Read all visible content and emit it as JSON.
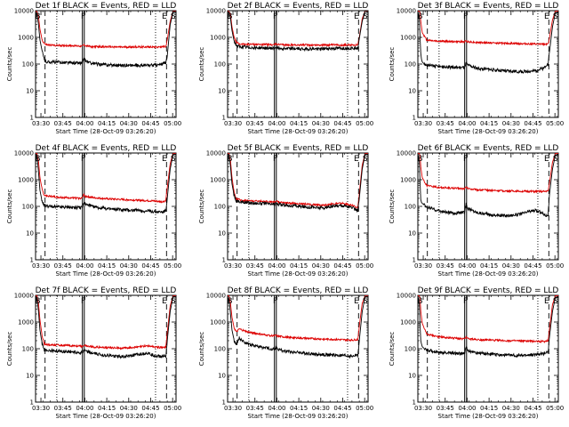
{
  "figure": {
    "colors": {
      "events": "#000000",
      "lld": "#dd0000",
      "axis": "#000000",
      "background": "#ffffff"
    },
    "shared": {
      "xlabel": "Start Time (28-Oct-09 03:26:20)",
      "ylabel": "Counts/sec",
      "xtick_labels": [
        "03:30",
        "03:45",
        "04:00",
        "04:15",
        "04:30",
        "04:45",
        "05:00"
      ],
      "xtick_minutes": [
        3.67,
        18.67,
        33.67,
        48.67,
        63.67,
        78.67,
        93.67
      ],
      "ytick_labels": [
        "1",
        "10",
        "100",
        "1000",
        "10000"
      ],
      "ytick_values": [
        1,
        10,
        100,
        1000,
        10000
      ],
      "xlim_minutes": [
        0,
        96
      ],
      "ylim": [
        1,
        10000
      ],
      "yscale": "log",
      "dashed_vlines": [
        6.5,
        89.5
      ],
      "dotted_vlines": [
        14.5,
        82
      ],
      "solid_vlines": [
        32,
        33.3
      ],
      "markers": {
        "B": 1.5,
        "F": 32.6,
        "E": 88,
        "S": 94
      }
    }
  },
  "chart_data": [
    {
      "type": "line",
      "title": "Det 1f BLACK = Events, RED = LLD",
      "series": [
        {
          "color": "black",
          "x": [
            0,
            1,
            2,
            3,
            4.5,
            5.5,
            6.5,
            8,
            10,
            14,
            18,
            24,
            30,
            32,
            33,
            34,
            37,
            42,
            50,
            60,
            70,
            80,
            86,
            88,
            89,
            90,
            92,
            94,
            96
          ],
          "y": [
            8500,
            8000,
            3000,
            800,
            300,
            180,
            130,
            120,
            120,
            118,
            115,
            110,
            108,
            108,
            150,
            135,
            110,
            100,
            92,
            90,
            88,
            90,
            95,
            110,
            105,
            200,
            3000,
            9000,
            9000
          ]
        },
        {
          "color": "red",
          "x": [
            0,
            1,
            2,
            3,
            4.5,
            6,
            8,
            14,
            24,
            32,
            33,
            34,
            38,
            50,
            60,
            70,
            80,
            87,
            88,
            89,
            90,
            92,
            94,
            96
          ],
          "y": [
            9500,
            9200,
            6000,
            2000,
            800,
            580,
            520,
            500,
            490,
            470,
            520,
            490,
            450,
            440,
            430,
            440,
            440,
            440,
            460,
            440,
            800,
            4000,
            9500,
            9500
          ]
        }
      ]
    },
    {
      "type": "line",
      "title": "Det 2f BLACK = Events, RED = LLD",
      "series": [
        {
          "color": "black",
          "x": [
            0,
            1,
            2,
            3,
            4.5,
            6,
            8,
            14,
            24,
            32,
            33,
            34,
            40,
            50,
            60,
            70,
            80,
            87,
            88,
            89,
            90,
            92,
            94,
            96
          ],
          "y": [
            9000,
            8500,
            5000,
            1800,
            700,
            500,
            440,
            420,
            400,
            390,
            430,
            400,
            380,
            370,
            370,
            380,
            390,
            400,
            430,
            400,
            900,
            4000,
            9500,
            9500
          ]
        },
        {
          "color": "red",
          "x": [
            0,
            1,
            2,
            3,
            4.5,
            6,
            8,
            14,
            24,
            32,
            33,
            34,
            40,
            50,
            60,
            70,
            80,
            87,
            88,
            89,
            90,
            92,
            94,
            96
          ],
          "y": [
            9500,
            9300,
            7000,
            2500,
            1000,
            650,
            560,
            550,
            540,
            530,
            570,
            540,
            520,
            520,
            515,
            520,
            515,
            520,
            540,
            520,
            1000,
            5000,
            9800,
            9800
          ]
        }
      ]
    },
    {
      "type": "line",
      "title": "Det 3f BLACK = Events, RED = LLD",
      "series": [
        {
          "color": "black",
          "x": [
            0,
            1,
            1.5,
            2,
            2.5,
            3,
            4.5,
            6,
            10,
            16,
            24,
            32,
            33,
            34,
            40,
            50,
            60,
            70,
            80,
            86,
            88,
            89,
            90,
            92,
            94,
            96
          ],
          "y": [
            8000,
            6000,
            1000,
            250,
            150,
            120,
            100,
            90,
            85,
            80,
            75,
            75,
            110,
            90,
            70,
            62,
            55,
            52,
            55,
            70,
            100,
            95,
            300,
            2500,
            8500,
            8500
          ]
        },
        {
          "color": "red",
          "x": [
            0,
            1,
            1.5,
            2,
            3,
            6,
            14,
            24,
            32,
            33,
            34,
            40,
            50,
            60,
            70,
            80,
            87,
            88,
            89,
            90,
            92,
            94,
            96
          ],
          "y": [
            9700,
            9600,
            8500,
            4000,
            1500,
            800,
            720,
            700,
            680,
            740,
            690,
            650,
            620,
            600,
            580,
            560,
            550,
            570,
            560,
            1000,
            4500,
            9700,
            9700
          ]
        }
      ]
    },
    {
      "type": "line",
      "title": "Det 4f BLACK = Events, RED = LLD",
      "series": [
        {
          "color": "black",
          "x": [
            0,
            1,
            2,
            3,
            4.5,
            6,
            10,
            16,
            24,
            30,
            32,
            33,
            34,
            40,
            50,
            60,
            70,
            80,
            86,
            88,
            89,
            90,
            92,
            94,
            96
          ],
          "y": [
            9000,
            8000,
            2000,
            400,
            150,
            110,
            100,
            95,
            92,
            88,
            90,
            150,
            120,
            95,
            80,
            75,
            70,
            65,
            62,
            65,
            70,
            200,
            2500,
            9000,
            9000
          ]
        },
        {
          "color": "red",
          "x": [
            0,
            1,
            2,
            3,
            4.5,
            6,
            10,
            16,
            24,
            30,
            32,
            33,
            34,
            40,
            50,
            60,
            70,
            80,
            86,
            88,
            89,
            90,
            92,
            94,
            96
          ],
          "y": [
            9800,
            9500,
            5000,
            1200,
            420,
            260,
            240,
            220,
            210,
            200,
            210,
            280,
            240,
            210,
            190,
            180,
            170,
            160,
            150,
            155,
            170,
            500,
            4000,
            9700,
            9700
          ]
        }
      ]
    },
    {
      "type": "line",
      "title": "Det 5f BLACK = Events, RED = LLD",
      "series": [
        {
          "color": "black",
          "x": [
            0,
            1,
            2,
            3,
            4.5,
            6,
            10,
            16,
            24,
            30,
            32,
            33,
            34,
            40,
            50,
            60,
            66,
            72,
            78,
            84,
            88,
            89,
            90,
            92,
            94,
            96
          ],
          "y": [
            9000,
            8500,
            3000,
            700,
            250,
            160,
            145,
            135,
            128,
            120,
            118,
            130,
            120,
            110,
            100,
            90,
            88,
            100,
            110,
            95,
            75,
            70,
            200,
            2500,
            9000,
            9000
          ]
        },
        {
          "color": "red",
          "x": [
            0,
            1,
            2,
            3,
            4.5,
            6,
            10,
            16,
            24,
            30,
            32,
            33,
            34,
            40,
            50,
            60,
            66,
            72,
            78,
            84,
            88,
            89,
            90,
            92,
            94,
            96
          ],
          "y": [
            9800,
            9500,
            5000,
            1200,
            320,
            190,
            170,
            160,
            155,
            150,
            148,
            158,
            150,
            135,
            125,
            115,
            112,
            125,
            130,
            115,
            95,
            88,
            300,
            3500,
            9700,
            9700
          ]
        }
      ]
    },
    {
      "type": "line",
      "title": "Det 6f BLACK = Events, RED = LLD",
      "series": [
        {
          "color": "black",
          "x": [
            0,
            1,
            1.5,
            2,
            2.5,
            3,
            4.5,
            6,
            10,
            16,
            24,
            32,
            33,
            34,
            40,
            50,
            60,
            70,
            76,
            80,
            84,
            88,
            89,
            90,
            92,
            94,
            96
          ],
          "y": [
            8000,
            5000,
            800,
            180,
            140,
            130,
            110,
            95,
            80,
            65,
            55,
            60,
            120,
            85,
            60,
            48,
            45,
            50,
            65,
            70,
            60,
            45,
            50,
            300,
            2500,
            8500,
            8500
          ]
        },
        {
          "color": "red",
          "x": [
            0,
            1,
            1.5,
            2,
            3,
            6,
            14,
            24,
            32,
            33,
            34,
            40,
            50,
            60,
            70,
            80,
            87,
            88,
            89,
            90,
            92,
            94,
            96
          ],
          "y": [
            9700,
            9500,
            8000,
            3000,
            1200,
            600,
            520,
            480,
            460,
            520,
            470,
            420,
            400,
            380,
            370,
            360,
            360,
            380,
            360,
            800,
            4500,
            9700,
            9700
          ]
        }
      ]
    },
    {
      "type": "line",
      "title": "Det 7f BLACK = Events, RED = LLD",
      "series": [
        {
          "color": "black",
          "x": [
            0,
            1,
            2,
            3,
            4.5,
            6,
            10,
            16,
            24,
            30,
            32,
            33,
            34,
            40,
            50,
            60,
            70,
            76,
            80,
            86,
            88,
            89,
            90,
            92,
            94,
            96
          ],
          "y": [
            9000,
            8000,
            2500,
            500,
            150,
            90,
            85,
            80,
            78,
            72,
            70,
            90,
            80,
            65,
            55,
            50,
            60,
            70,
            58,
            50,
            55,
            52,
            200,
            2500,
            9000,
            9000
          ]
        },
        {
          "color": "red",
          "x": [
            0,
            1,
            2,
            3,
            4.5,
            6,
            10,
            16,
            24,
            30,
            32,
            33,
            34,
            40,
            50,
            60,
            70,
            76,
            80,
            86,
            88,
            89,
            90,
            92,
            94,
            96
          ],
          "y": [
            9800,
            9500,
            5000,
            1200,
            300,
            150,
            140,
            135,
            130,
            125,
            120,
            140,
            130,
            115,
            110,
            105,
            115,
            130,
            120,
            110,
            115,
            110,
            400,
            4000,
            9700,
            9700
          ]
        }
      ]
    },
    {
      "type": "line",
      "title": "Det 8f BLACK = Events, RED = LLD",
      "series": [
        {
          "color": "black",
          "x": [
            0,
            1,
            2,
            3,
            4.5,
            6,
            8,
            10,
            14,
            24,
            32,
            33,
            34,
            40,
            50,
            60,
            70,
            80,
            86,
            88,
            89,
            90,
            92,
            94,
            96
          ],
          "y": [
            8500,
            7000,
            2000,
            500,
            200,
            150,
            250,
            200,
            150,
            110,
            95,
            110,
            95,
            80,
            70,
            62,
            58,
            55,
            52,
            60,
            55,
            200,
            2500,
            9000,
            9000
          ]
        },
        {
          "color": "red",
          "x": [
            0,
            1,
            2,
            3,
            4.5,
            6,
            8,
            10,
            14,
            24,
            32,
            33,
            34,
            40,
            50,
            60,
            70,
            80,
            86,
            88,
            89,
            90,
            92,
            94,
            96
          ],
          "y": [
            9800,
            9500,
            5000,
            1500,
            600,
            420,
            550,
            500,
            420,
            340,
            300,
            320,
            295,
            270,
            250,
            235,
            225,
            215,
            210,
            220,
            215,
            700,
            5000,
            9800,
            9800
          ]
        }
      ]
    },
    {
      "type": "line",
      "title": "Det 9f BLACK = Events, RED = LLD",
      "series": [
        {
          "color": "black",
          "x": [
            0,
            1,
            1.5,
            2,
            2.5,
            3,
            4.5,
            6,
            10,
            16,
            24,
            32,
            33,
            34,
            40,
            50,
            60,
            70,
            80,
            86,
            88,
            89,
            90,
            92,
            94,
            96
          ],
          "y": [
            8000,
            5000,
            800,
            200,
            150,
            120,
            100,
            90,
            80,
            72,
            68,
            65,
            120,
            85,
            70,
            62,
            58,
            55,
            60,
            65,
            80,
            70,
            300,
            2500,
            8500,
            8500
          ]
        },
        {
          "color": "red",
          "x": [
            0,
            1,
            1.5,
            2,
            3,
            6,
            14,
            24,
            32,
            33,
            34,
            40,
            50,
            60,
            70,
            80,
            87,
            88,
            89,
            90,
            92,
            94,
            96
          ],
          "y": [
            9700,
            9500,
            8000,
            2500,
            900,
            350,
            280,
            250,
            230,
            280,
            240,
            220,
            210,
            200,
            195,
            190,
            185,
            200,
            190,
            600,
            4500,
            9700,
            9700
          ]
        }
      ]
    }
  ]
}
